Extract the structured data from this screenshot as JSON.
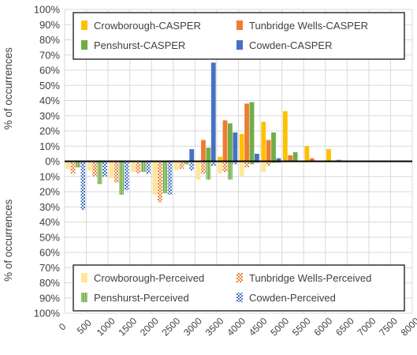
{
  "chart_data": {
    "type": "bar",
    "title": "",
    "xlabel": "",
    "ylabel_top": "% of occurrences",
    "ylabel_bottom": "% of occurrences",
    "ylim": [
      -100,
      100
    ],
    "y_ticks": [
      -100,
      -90,
      -80,
      -70,
      -60,
      -50,
      -40,
      -30,
      -20,
      -10,
      0,
      10,
      20,
      30,
      40,
      50,
      60,
      70,
      80,
      90,
      100
    ],
    "y_tick_labels": [
      "100%",
      "90%",
      "80%",
      "70%",
      "60%",
      "50%",
      "40%",
      "30%",
      "20%",
      "10%",
      "0%",
      "10%",
      "20%",
      "30%",
      "40%",
      "50%",
      "60%",
      "70%",
      "80%",
      "90%",
      "100%"
    ],
    "x_tick_labels": [
      "0",
      "500",
      "1000",
      "1500",
      "2000",
      "2500",
      "3000",
      "3500",
      "4000",
      "4500",
      "5000",
      "5500",
      "6000",
      "6500",
      "7000",
      "7500",
      "8000"
    ],
    "grid": true,
    "legend_top_position": "top",
    "legend_bottom_position": "bottom",
    "series_top": [
      {
        "name": "Crowborough-CASPER",
        "color": "#FFC000",
        "pattern": "solid",
        "values": [
          0,
          0,
          0,
          0,
          0,
          0,
          0,
          3,
          18,
          26,
          33,
          10,
          8,
          0,
          0,
          0
        ]
      },
      {
        "name": "Tunbridge Wells-CASPER",
        "color": "#ED7D31",
        "pattern": "solid",
        "values": [
          0,
          0,
          0,
          0,
          0,
          0,
          14,
          27,
          38,
          14,
          4,
          2,
          0,
          0,
          0,
          0
        ]
      },
      {
        "name": "Penshurst-CASPER",
        "color": "#70AD47",
        "pattern": "solid",
        "values": [
          0,
          0,
          0,
          0,
          0,
          0,
          9,
          25,
          39,
          19,
          6,
          0,
          1,
          0,
          0,
          0
        ]
      },
      {
        "name": "Cowden-CASPER",
        "color": "#4472C4",
        "pattern": "solid",
        "values": [
          0,
          0,
          0,
          0,
          0,
          8,
          65,
          19,
          5,
          2,
          0,
          0,
          0,
          0,
          0,
          0
        ]
      }
    ],
    "series_bottom": [
      {
        "name": "Crowborough-Perceived",
        "color": "#FFE699",
        "pattern": "solid",
        "values": [
          -5,
          -6,
          -11,
          -7,
          -22,
          -6,
          -12,
          -8,
          -10,
          -7,
          0,
          0,
          0,
          0,
          0,
          0
        ]
      },
      {
        "name": "Tunbridge Wells-Perceived",
        "color": "#ED7D31",
        "pattern": "checker",
        "values": [
          -8,
          -10,
          -14,
          -8,
          -27,
          -5,
          -8,
          -7,
          -4,
          -3,
          0,
          0,
          0,
          0,
          0,
          0
        ]
      },
      {
        "name": "Penshurst-Perceived",
        "color": "#70AD47",
        "pattern": "vstripe",
        "values": [
          -4,
          -15,
          -22,
          -7,
          -21,
          -2,
          -12,
          -12,
          -2,
          -1,
          0,
          0,
          0,
          0,
          0,
          0
        ]
      },
      {
        "name": "Cowden-Perceived",
        "color": "#4472C4",
        "pattern": "checker",
        "values": [
          -32,
          -10,
          -19,
          -8,
          -22,
          -6,
          -3,
          -2,
          -1,
          -1,
          0,
          0,
          0,
          0,
          0,
          0
        ]
      }
    ]
  }
}
